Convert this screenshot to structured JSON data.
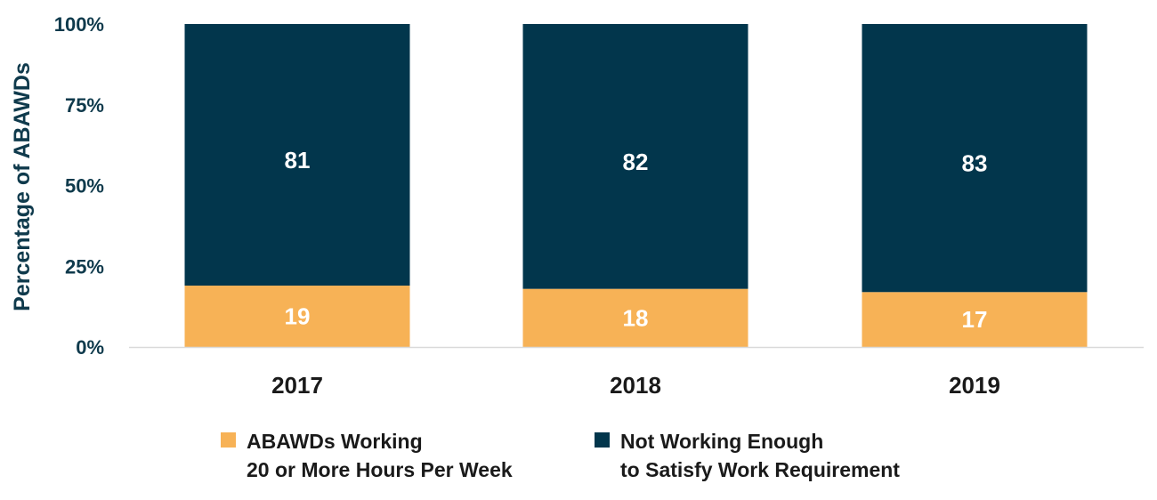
{
  "chart_data": {
    "type": "bar",
    "stacked": true,
    "categories": [
      "2017",
      "2018",
      "2019"
    ],
    "series": [
      {
        "name": "ABAWDs Working 20 or More Hours Per Week",
        "values": [
          19,
          18,
          17
        ],
        "color": "#f7b256"
      },
      {
        "name": "Not Working Enough to Satisfy Work Requirement",
        "values": [
          81,
          82,
          83
        ],
        "color": "#02364c"
      }
    ],
    "ylabel": "Percentage of ABAWDs",
    "ylim": [
      0,
      100
    ],
    "yticks": [
      "0%",
      "25%",
      "50%",
      "75%",
      "100%"
    ],
    "grid": false,
    "legend_position": "bottom"
  },
  "legend": {
    "working": {
      "line1": "ABAWDs Working",
      "line2": "20 or More Hours Per Week",
      "color": "#f7b256"
    },
    "not_working": {
      "line1": "Not Working Enough",
      "line2": "to Satisfy Work Requirement",
      "color": "#02364c"
    }
  }
}
